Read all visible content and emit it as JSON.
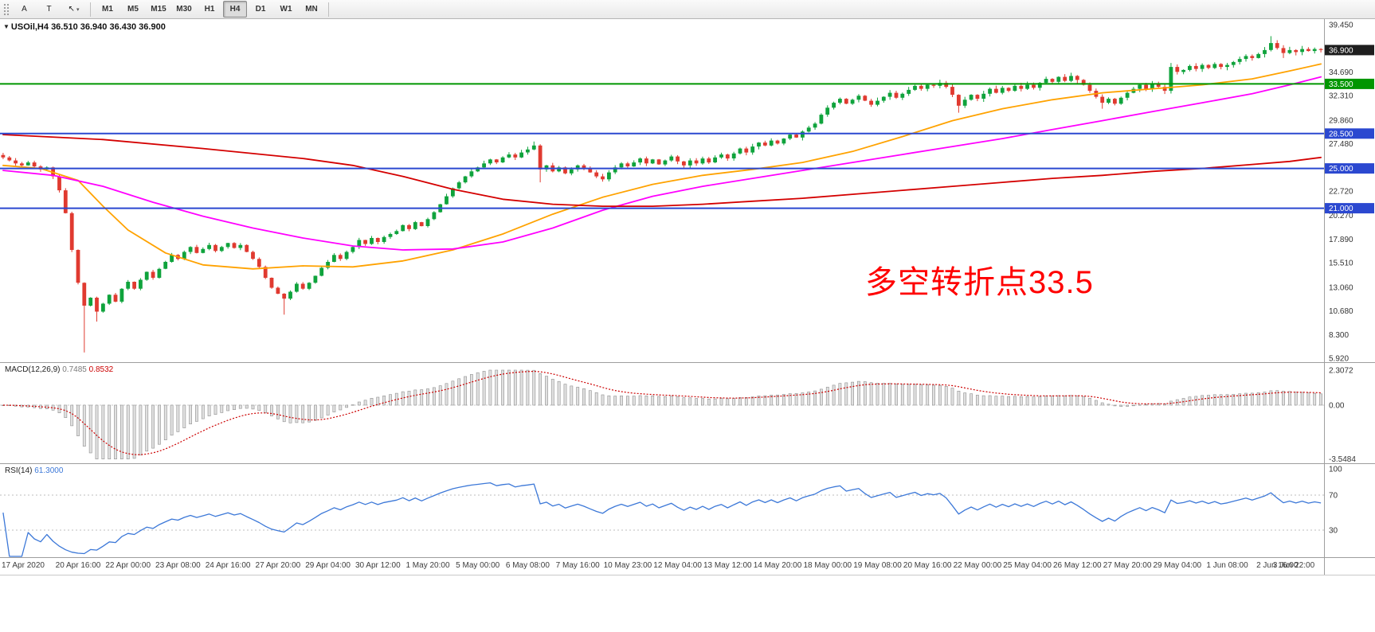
{
  "toolbar": {
    "tools": [
      {
        "name": "text-tool-button",
        "glyph": "A",
        "caret": false
      },
      {
        "name": "template-tool-button",
        "glyph": "T",
        "caret": false
      },
      {
        "name": "cursor-tool-button",
        "glyph": "↖",
        "caret": true
      }
    ],
    "timeframes": [
      {
        "label": "M1",
        "active": false
      },
      {
        "label": "M5",
        "active": false
      },
      {
        "label": "M15",
        "active": false
      },
      {
        "label": "M30",
        "active": false
      },
      {
        "label": "H1",
        "active": false
      },
      {
        "label": "H4",
        "active": true
      },
      {
        "label": "D1",
        "active": false
      },
      {
        "label": "W1",
        "active": false
      },
      {
        "label": "MN",
        "active": false
      }
    ]
  },
  "header": {
    "symbol_timeframe": "USOil,H4",
    "ohlc": "36.510 36.940 36.430 36.900"
  },
  "chart_data": {
    "type": "candlestick",
    "symbol": "USOil",
    "timeframe": "H4",
    "ohlc_current": {
      "open": 36.51,
      "high": 36.94,
      "low": 36.43,
      "close": 36.9
    },
    "last_price": 36.9,
    "last_price_label": "36.900",
    "last_price_badge_color": "#1e1e1e",
    "colors": {
      "up": "#0fa33c",
      "down": "#e03a30"
    },
    "price_axis": {
      "min": 5.92,
      "max": 39.45,
      "ticks": [
        39.45,
        34.69,
        32.31,
        29.86,
        27.48,
        22.72,
        20.27,
        17.89,
        15.51,
        13.06,
        10.68,
        8.3,
        5.92
      ]
    },
    "hlines": [
      {
        "price": 33.5,
        "label": "33.500",
        "color": "#009600"
      },
      {
        "price": 28.5,
        "label": "28.500",
        "color": "#2b48d0"
      },
      {
        "price": 25.0,
        "label": "25.000",
        "color": "#2b48d0"
      },
      {
        "price": 21.0,
        "label": "21.000",
        "color": "#2b48d0"
      }
    ],
    "time_labels": [
      "17 Apr 2020",
      "20 Apr 16:00",
      "22 Apr 00:00",
      "23 Apr 08:00",
      "24 Apr 16:00",
      "27 Apr 20:00",
      "29 Apr 04:00",
      "30 Apr 12:00",
      "1 May 20:00",
      "5 May 00:00",
      "6 May 08:00",
      "7 May 16:00",
      "10 May 23:00",
      "12 May 04:00",
      "13 May 12:00",
      "14 May 20:00",
      "18 May 00:00",
      "19 May 08:00",
      "20 May 16:00",
      "22 May 00:00",
      "25 May 04:00",
      "26 May 12:00",
      "27 May 20:00",
      "29 May 04:00",
      "1 Jun 08:00",
      "2 Jun 16:00",
      "3 Jun 22:00"
    ],
    "first_label_bar": 4,
    "bars_per_label": 8,
    "closes": [
      26.1,
      25.8,
      25.5,
      25.3,
      25.6,
      25.2,
      24.9,
      25.1,
      24.2,
      22.8,
      20.5,
      16.8,
      13.5,
      11.2,
      12.0,
      10.6,
      11.4,
      12.3,
      11.6,
      12.9,
      13.6,
      12.9,
      13.8,
      14.6,
      14.0,
      14.9,
      15.6,
      16.3,
      15.9,
      16.6,
      17.1,
      16.5,
      16.9,
      17.3,
      16.7,
      17.1,
      17.5,
      17.0,
      17.3,
      16.6,
      15.9,
      15.1,
      14.0,
      13.0,
      12.4,
      11.9,
      12.6,
      13.4,
      12.9,
      13.5,
      14.2,
      15.0,
      15.6,
      16.3,
      15.9,
      16.6,
      17.1,
      17.8,
      17.4,
      18.0,
      17.6,
      18.1,
      18.4,
      18.7,
      19.3,
      18.9,
      19.6,
      19.2,
      19.9,
      20.6,
      21.4,
      22.2,
      23.0,
      23.6,
      24.2,
      24.7,
      25.1,
      25.5,
      25.9,
      25.6,
      26.1,
      26.4,
      26.1,
      26.6,
      26.9,
      27.3,
      24.9,
      25.3,
      24.7,
      25.1,
      24.5,
      24.9,
      25.3,
      25.0,
      24.6,
      24.2,
      23.9,
      24.6,
      25.1,
      25.5,
      25.2,
      25.6,
      26.0,
      25.5,
      25.9,
      25.4,
      25.8,
      26.2,
      25.7,
      25.3,
      25.8,
      25.5,
      26.0,
      25.6,
      26.1,
      26.4,
      26.0,
      26.5,
      27.0,
      26.6,
      27.2,
      27.6,
      27.3,
      27.8,
      27.5,
      28.0,
      28.4,
      28.1,
      28.7,
      29.1,
      29.5,
      30.4,
      31.1,
      31.6,
      32.0,
      31.5,
      31.9,
      32.3,
      31.8,
      31.4,
      31.8,
      32.2,
      32.6,
      32.1,
      32.5,
      32.9,
      33.3,
      33.0,
      33.4,
      33.3,
      33.6,
      33.2,
      32.4,
      31.3,
      31.9,
      32.4,
      32.0,
      32.5,
      33.0,
      32.6,
      33.1,
      32.8,
      33.3,
      33.0,
      33.4,
      33.1,
      33.6,
      34.0,
      33.7,
      34.2,
      33.8,
      34.3,
      33.9,
      33.4,
      32.8,
      32.2,
      31.6,
      32.0,
      31.5,
      32.1,
      32.6,
      33.0,
      33.4,
      33.0,
      33.5,
      33.2,
      32.8,
      35.2,
      34.7,
      34.9,
      35.3,
      35.0,
      35.4,
      35.1,
      35.5,
      35.2,
      35.4,
      35.7,
      36.0,
      36.3,
      36.1,
      36.5,
      36.9,
      37.6,
      37.1,
      36.6,
      36.9,
      36.7,
      37.0,
      36.8,
      37.0,
      36.9
    ],
    "special_wicks": {
      "13": {
        "low": 6.5
      },
      "15": {
        "low": 9.6
      },
      "45": {
        "low": 10.3
      },
      "85": {
        "high": 27.7
      },
      "86": {
        "low": 23.6
      },
      "153": {
        "low": 30.6
      },
      "176": {
        "low": 31.0
      },
      "187": {
        "high": 35.6
      },
      "203": {
        "high": 38.3
      },
      "205": {
        "low": 36.1
      }
    },
    "moving_averages": [
      {
        "name": "fast",
        "color": "#ffa200",
        "anchors": [
          [
            0,
            25.3
          ],
          [
            6,
            25.0
          ],
          [
            12,
            23.8
          ],
          [
            16,
            21.2
          ],
          [
            20,
            18.8
          ],
          [
            26,
            16.5
          ],
          [
            32,
            15.3
          ],
          [
            40,
            14.9
          ],
          [
            48,
            15.2
          ],
          [
            56,
            15.1
          ],
          [
            64,
            15.7
          ],
          [
            72,
            16.8
          ],
          [
            80,
            18.4
          ],
          [
            88,
            20.4
          ],
          [
            96,
            22.1
          ],
          [
            104,
            23.4
          ],
          [
            112,
            24.3
          ],
          [
            120,
            24.9
          ],
          [
            128,
            25.6
          ],
          [
            136,
            26.7
          ],
          [
            144,
            28.2
          ],
          [
            152,
            29.8
          ],
          [
            160,
            31.0
          ],
          [
            168,
            31.9
          ],
          [
            176,
            32.6
          ],
          [
            184,
            33.0
          ],
          [
            192,
            33.4
          ],
          [
            200,
            34.0
          ],
          [
            206,
            34.8
          ],
          [
            211,
            35.5
          ]
        ]
      },
      {
        "name": "medium",
        "color": "#ff00ff",
        "anchors": [
          [
            0,
            24.8
          ],
          [
            8,
            24.3
          ],
          [
            16,
            23.2
          ],
          [
            24,
            21.6
          ],
          [
            32,
            20.2
          ],
          [
            40,
            19.0
          ],
          [
            48,
            18.0
          ],
          [
            56,
            17.2
          ],
          [
            64,
            16.8
          ],
          [
            72,
            16.9
          ],
          [
            80,
            17.6
          ],
          [
            88,
            19.0
          ],
          [
            96,
            20.8
          ],
          [
            104,
            22.2
          ],
          [
            112,
            23.2
          ],
          [
            120,
            24.0
          ],
          [
            128,
            24.8
          ],
          [
            136,
            25.6
          ],
          [
            144,
            26.4
          ],
          [
            152,
            27.2
          ],
          [
            160,
            28.0
          ],
          [
            168,
            28.9
          ],
          [
            176,
            29.8
          ],
          [
            184,
            30.7
          ],
          [
            192,
            31.6
          ],
          [
            200,
            32.5
          ],
          [
            206,
            33.4
          ],
          [
            211,
            34.2
          ]
        ]
      },
      {
        "name": "slow",
        "color": "#d40000",
        "anchors": [
          [
            0,
            28.4
          ],
          [
            16,
            27.9
          ],
          [
            32,
            27.0
          ],
          [
            48,
            26.0
          ],
          [
            56,
            25.3
          ],
          [
            64,
            24.2
          ],
          [
            72,
            22.9
          ],
          [
            80,
            21.9
          ],
          [
            88,
            21.4
          ],
          [
            96,
            21.2
          ],
          [
            104,
            21.2
          ],
          [
            112,
            21.4
          ],
          [
            120,
            21.7
          ],
          [
            128,
            22.0
          ],
          [
            136,
            22.4
          ],
          [
            144,
            22.8
          ],
          [
            152,
            23.2
          ],
          [
            160,
            23.6
          ],
          [
            168,
            24.0
          ],
          [
            176,
            24.3
          ],
          [
            184,
            24.7
          ],
          [
            192,
            25.0
          ],
          [
            200,
            25.4
          ],
          [
            206,
            25.7
          ],
          [
            211,
            26.1
          ]
        ]
      }
    ],
    "macd": {
      "name": "MACD(12,26,9)",
      "value_main": "0.7485",
      "value_signal": "0.8532",
      "fast": 12,
      "slow": 26,
      "signal_period": 9,
      "axis": [
        [
          2.3072,
          "2.3072"
        ],
        [
          0,
          "0.00"
        ],
        [
          -3.5484,
          "-3.5484"
        ]
      ],
      "range": [
        -3.5484,
        2.3072
      ],
      "histogram_color": "#e0e0e0",
      "histogram_stroke": "#8f8f8f",
      "signal_color": "#cc0000"
    },
    "rsi": {
      "name": "RSI(14)",
      "value": "61.3000",
      "period": 14,
      "axis": [
        [
          100,
          "100"
        ],
        [
          70,
          "70"
        ],
        [
          30,
          "30"
        ]
      ],
      "levels": [
        70,
        30
      ],
      "line_color": "#3c78d8"
    },
    "annotation": {
      "text": "多空转折点33.5",
      "color": "#ff0000"
    }
  }
}
